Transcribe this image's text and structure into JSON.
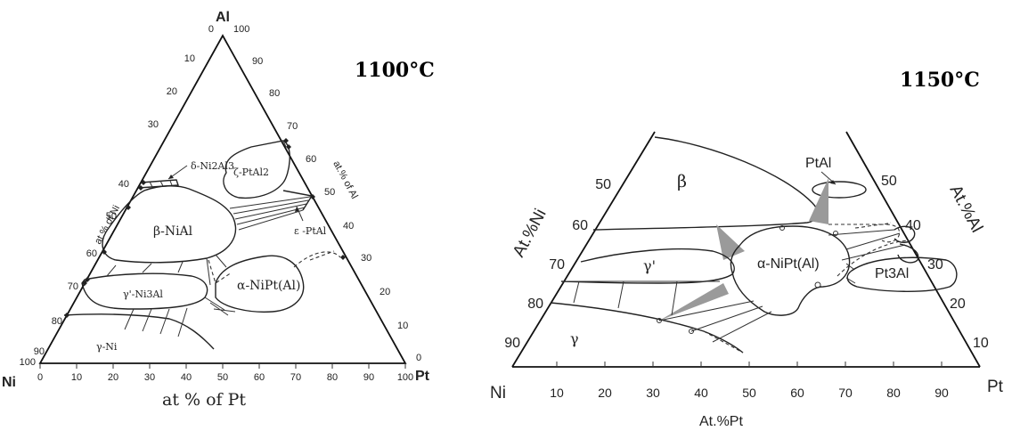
{
  "left_panel": {
    "title": "1100°C",
    "apex_top": "Al",
    "apex_left": "Ni",
    "apex_right": "Pt",
    "axis_left_label": "at.% of Ni",
    "axis_right_label": "at.% of Al",
    "axis_bottom_label": "at % of Pt",
    "bottom_ticks": [
      "0",
      "10",
      "20",
      "30",
      "40",
      "50",
      "60",
      "70",
      "80",
      "90",
      "100"
    ],
    "left_ticks": [
      "0",
      "10",
      "20",
      "30",
      "40",
      "50",
      "60",
      "70",
      "80",
      "90",
      "100"
    ],
    "right_ticks": [
      "100",
      "90",
      "80",
      "70",
      "60",
      "50",
      "40",
      "30",
      "20",
      "10",
      "0"
    ],
    "phases": {
      "delta": "δ-Ni2Al3",
      "zeta": "ζ-PtAl2",
      "beta": "β-NiAl",
      "epsilon": "ε -PtAl",
      "gamma_prime": "γ'-Ni3Al",
      "alpha": "α-NiPt(Al)",
      "gamma": "γ-Ni"
    }
  },
  "right_panel": {
    "title": "1150°C",
    "label_left": "Ni",
    "label_right": "Pt",
    "axis_left_label": "At.%Ni",
    "axis_right_label": "At.%Al",
    "axis_bottom_label": "At.%Pt",
    "bottom_ticks": [
      "10",
      "20",
      "30",
      "40",
      "50",
      "60",
      "70",
      "80",
      "90"
    ],
    "left_ticks": [
      "50",
      "60",
      "70",
      "80",
      "90"
    ],
    "right_ticks": [
      "50",
      "40",
      "30",
      "20",
      "10"
    ],
    "phases": {
      "ptal": "PtAl",
      "beta": "β",
      "alpha": "α-NiPt(Al)",
      "gamma_prime": "γ'",
      "pt3al": "Pt3Al",
      "gamma": "γ"
    }
  }
}
